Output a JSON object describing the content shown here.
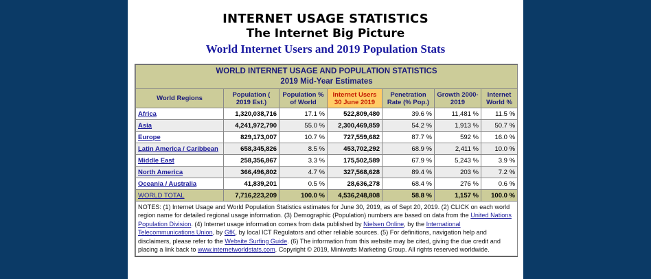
{
  "header": {
    "title": "INTERNET USAGE STATISTICS",
    "subtitle": "The Internet Big Picture",
    "tagline": "World Internet Users and 2019 Population Stats"
  },
  "table": {
    "title_line1": "WORLD INTERNET USAGE AND POPULATION STATISTICS",
    "title_line2": "2019 Mid-Year Estimates",
    "columns": [
      "World Regions",
      "Population ( 2019 Est.)",
      "Population % of World",
      "Internet Users 30 June 2019",
      "Penetration Rate (% Pop.)",
      "Growth 2000-2019",
      "Internet World %"
    ],
    "rows": [
      {
        "region": "Africa",
        "population": "1,320,038,716",
        "pct_world": "17.1 %",
        "users": "522,809,480",
        "penetration": "39.6 %",
        "growth": "11,481 %",
        "internet_pct": "11.5 %"
      },
      {
        "region": "Asia",
        "population": "4,241,972,790",
        "pct_world": "55.0 %",
        "users": "2,300,469,859",
        "penetration": "54.2 %",
        "growth": "1,913 %",
        "internet_pct": "50.7 %"
      },
      {
        "region": "Europe",
        "population": "829,173,007",
        "pct_world": "10.7 %",
        "users": "727,559,682",
        "penetration": "87.7 %",
        "growth": "592 %",
        "internet_pct": "16.0 %"
      },
      {
        "region": "Latin America / Caribbean",
        "population": "658,345,826",
        "pct_world": "8.5 %",
        "users": "453,702,292",
        "penetration": "68.9 %",
        "growth": "2,411 %",
        "internet_pct": "10.0 %"
      },
      {
        "region": "Middle East",
        "population": "258,356,867",
        "pct_world": "3.3 %",
        "users": "175,502,589",
        "penetration": "67.9 %",
        "growth": "5,243 %",
        "internet_pct": "3.9 %"
      },
      {
        "region": "North America",
        "population": "366,496,802",
        "pct_world": "4.7 %",
        "users": "327,568,628",
        "penetration": "89.4 %",
        "growth": "203 %",
        "internet_pct": "7.2 %"
      },
      {
        "region": "Oceania / Australia",
        "population": "41,839,201",
        "pct_world": "0.5 %",
        "users": "28,636,278",
        "penetration": "68.4 %",
        "growth": "276 %",
        "internet_pct": "0.6 %"
      }
    ],
    "total": {
      "region": "WORLD TOTAL",
      "population": "7,716,223,209",
      "pct_world": "100.0 %",
      "users": "4,536,248,808",
      "penetration": "58.8 %",
      "growth": "1,157 %",
      "internet_pct": "100.0 %"
    }
  },
  "notes": {
    "t1": "NOTES: (1) Internet Usage and World Population Statistics estimates for June 30, 2019, as of Sept 20, 2019. (2) CLICK on each world region name for detailed regional usage information. (3) Demographic (Population) numbers are based on data from the ",
    "l1": "United Nations Population Division",
    "t2": ". (4) Internet usage information comes from data published by ",
    "l2": "Nielsen Online",
    "t3": ", by the ",
    "l3": "International Telecommunications Union",
    "t4": ", by ",
    "l4": "GfK",
    "t5": ", by local ICT Regulators and other reliable sources. (5) For definitions, navigation help and disclaimers, please refer to the ",
    "l5": "Website Surfing Guide",
    "t6": ". (6) The information from this website may be cited, giving the due credit and placing a link back to ",
    "l6": "www.internetworldstats.com",
    "t7": ". Copyright © 2019, Miniwatts Marketing Group. All rights reserved worldwide."
  }
}
